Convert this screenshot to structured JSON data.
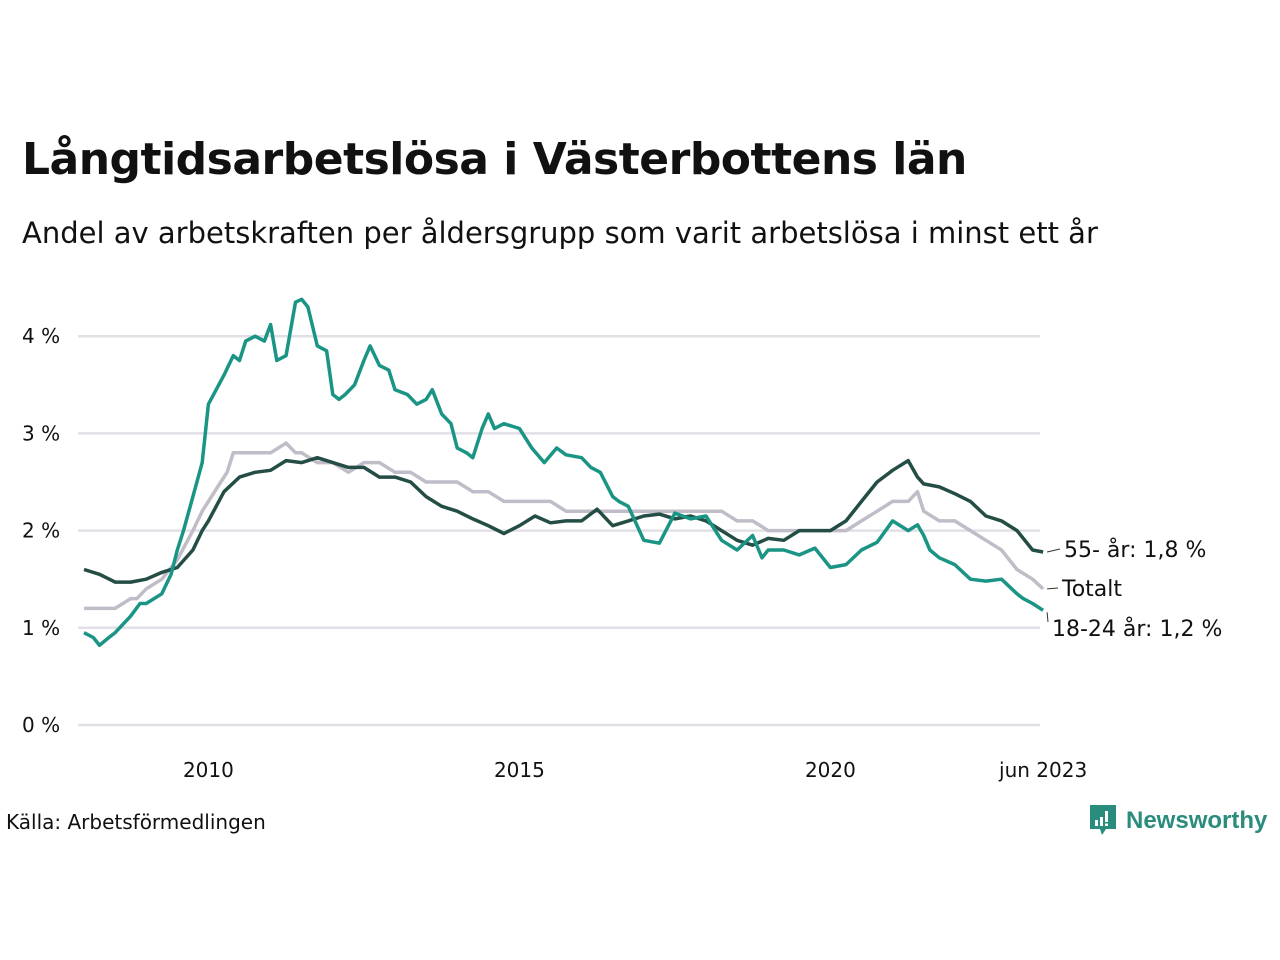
{
  "header": {
    "title": "Långtidsarbetslösa i Västerbottens län",
    "subtitle": "Andel av arbetskraften per åldersgrupp som varit arbetslösa i minst ett år"
  },
  "footer": {
    "source": "Källa: Arbetsförmedlingen",
    "brand": "Newsworthy"
  },
  "colors": {
    "youth": "#1a9484",
    "senior": "#234d45",
    "total": "#c0bcc8",
    "grid": "#e2e0e6",
    "brand": "#2a8c7c"
  },
  "chart_data": {
    "type": "line",
    "title": "Långtidsarbetslösa i Västerbottens län",
    "subtitle": "Andel av arbetskraften per åldersgrupp som varit arbetslösa i minst ett år",
    "xlabel": "",
    "ylabel": "",
    "xlim": [
      2008.0,
      2023.5
    ],
    "ylim": [
      0,
      4.5
    ],
    "grid": true,
    "y_ticks": [
      {
        "value": 0,
        "label": "0 %"
      },
      {
        "value": 1,
        "label": "1 %"
      },
      {
        "value": 2,
        "label": "2 %"
      },
      {
        "value": 3,
        "label": "3 %"
      },
      {
        "value": 4,
        "label": "4 %"
      }
    ],
    "x_ticks": [
      {
        "value": 2010.0,
        "label": "2010"
      },
      {
        "value": 2015.0,
        "label": "2015"
      },
      {
        "value": 2020.0,
        "label": "2020"
      },
      {
        "value": 2023.42,
        "label": "jun 2023"
      }
    ],
    "series": [
      {
        "name": "Totalt",
        "key": "total",
        "end_label": "Totalt",
        "x": [
          2008.0,
          2008.5,
          2008.75,
          2008.85,
          2009.0,
          2009.25,
          2009.5,
          2009.75,
          2009.9,
          2010.0,
          2010.2,
          2010.3,
          2010.4,
          2010.5,
          2010.75,
          2011.0,
          2011.25,
          2011.4,
          2011.5,
          2011.75,
          2012.0,
          2012.25,
          2012.5,
          2012.75,
          2013.0,
          2013.25,
          2013.5,
          2013.75,
          2014.0,
          2014.25,
          2014.5,
          2014.75,
          2015.0,
          2015.25,
          2015.5,
          2015.75,
          2016.0,
          2016.25,
          2016.5,
          2016.75,
          2017.0,
          2017.25,
          2017.5,
          2017.75,
          2018.0,
          2018.25,
          2018.5,
          2018.75,
          2019.0,
          2019.25,
          2019.5,
          2019.75,
          2020.0,
          2020.25,
          2020.5,
          2020.75,
          2021.0,
          2021.25,
          2021.4,
          2021.5,
          2021.75,
          2022.0,
          2022.25,
          2022.5,
          2022.75,
          2023.0,
          2023.25,
          2023.42
        ],
        "values": [
          1.2,
          1.2,
          1.3,
          1.3,
          1.4,
          1.5,
          1.7,
          2.0,
          2.2,
          2.3,
          2.5,
          2.6,
          2.8,
          2.8,
          2.8,
          2.8,
          2.9,
          2.8,
          2.8,
          2.7,
          2.7,
          2.6,
          2.7,
          2.7,
          2.6,
          2.6,
          2.5,
          2.5,
          2.5,
          2.4,
          2.4,
          2.3,
          2.3,
          2.3,
          2.3,
          2.2,
          2.2,
          2.2,
          2.2,
          2.2,
          2.2,
          2.2,
          2.2,
          2.2,
          2.2,
          2.2,
          2.1,
          2.1,
          2.0,
          2.0,
          2.0,
          2.0,
          2.0,
          2.0,
          2.1,
          2.2,
          2.3,
          2.3,
          2.4,
          2.2,
          2.1,
          2.1,
          2.0,
          1.9,
          1.8,
          1.6,
          1.5,
          1.4
        ]
      },
      {
        "name": "55- år",
        "key": "senior",
        "end_label": "55- år: 1,8 %",
        "x": [
          2008.0,
          2008.25,
          2008.5,
          2008.75,
          2009.0,
          2009.25,
          2009.5,
          2009.75,
          2009.9,
          2010.0,
          2010.25,
          2010.5,
          2010.75,
          2011.0,
          2011.25,
          2011.5,
          2011.75,
          2012.0,
          2012.25,
          2012.5,
          2012.75,
          2013.0,
          2013.25,
          2013.5,
          2013.75,
          2014.0,
          2014.25,
          2014.5,
          2014.75,
          2015.0,
          2015.25,
          2015.5,
          2015.75,
          2016.0,
          2016.25,
          2016.5,
          2016.75,
          2017.0,
          2017.25,
          2017.5,
          2017.75,
          2018.0,
          2018.25,
          2018.5,
          2018.75,
          2019.0,
          2019.25,
          2019.5,
          2019.75,
          2020.0,
          2020.25,
          2020.5,
          2020.75,
          2021.0,
          2021.25,
          2021.4,
          2021.5,
          2021.75,
          2022.0,
          2022.25,
          2022.5,
          2022.75,
          2023.0,
          2023.25,
          2023.42
        ],
        "values": [
          1.6,
          1.55,
          1.47,
          1.47,
          1.5,
          1.57,
          1.62,
          1.8,
          2.0,
          2.1,
          2.4,
          2.55,
          2.6,
          2.62,
          2.72,
          2.7,
          2.75,
          2.7,
          2.65,
          2.65,
          2.55,
          2.55,
          2.5,
          2.35,
          2.25,
          2.2,
          2.12,
          2.05,
          1.97,
          2.05,
          2.15,
          2.08,
          2.1,
          2.1,
          2.22,
          2.05,
          2.1,
          2.15,
          2.17,
          2.12,
          2.15,
          2.1,
          2.0,
          1.9,
          1.85,
          1.92,
          1.9,
          2.0,
          2.0,
          2.0,
          2.1,
          2.3,
          2.5,
          2.62,
          2.72,
          2.55,
          2.48,
          2.45,
          2.38,
          2.3,
          2.15,
          2.1,
          2.0,
          1.8,
          1.78
        ]
      },
      {
        "name": "18-24 år",
        "key": "youth",
        "end_label": "18-24 år: 1,2 %",
        "x": [
          2008.0,
          2008.15,
          2008.25,
          2008.4,
          2008.5,
          2008.75,
          2008.9,
          2009.0,
          2009.25,
          2009.4,
          2009.5,
          2009.6,
          2009.75,
          2009.9,
          2010.0,
          2010.25,
          2010.4,
          2010.5,
          2010.6,
          2010.75,
          2010.9,
          2011.0,
          2011.1,
          2011.25,
          2011.4,
          2011.5,
          2011.6,
          2011.75,
          2011.9,
          2012.0,
          2012.1,
          2012.2,
          2012.35,
          2012.5,
          2012.6,
          2012.75,
          2012.9,
          2013.0,
          2013.2,
          2013.35,
          2013.5,
          2013.6,
          2013.75,
          2013.9,
          2014.0,
          2014.15,
          2014.25,
          2014.4,
          2014.5,
          2014.6,
          2014.75,
          2015.0,
          2015.2,
          2015.4,
          2015.6,
          2015.75,
          2016.0,
          2016.15,
          2016.3,
          2016.5,
          2016.6,
          2016.75,
          2017.0,
          2017.25,
          2017.5,
          2017.75,
          2018.0,
          2018.25,
          2018.5,
          2018.75,
          2018.9,
          2019.0,
          2019.25,
          2019.5,
          2019.75,
          2020.0,
          2020.25,
          2020.5,
          2020.75,
          2021.0,
          2021.25,
          2021.4,
          2021.5,
          2021.6,
          2021.75,
          2022.0,
          2022.25,
          2022.5,
          2022.75,
          2023.0,
          2023.1,
          2023.25,
          2023.42
        ],
        "values": [
          0.95,
          0.9,
          0.82,
          0.9,
          0.95,
          1.12,
          1.25,
          1.25,
          1.35,
          1.55,
          1.8,
          2.0,
          2.35,
          2.7,
          3.3,
          3.6,
          3.8,
          3.75,
          3.95,
          4.0,
          3.95,
          4.12,
          3.75,
          3.8,
          4.35,
          4.38,
          4.3,
          3.9,
          3.85,
          3.4,
          3.35,
          3.4,
          3.5,
          3.75,
          3.9,
          3.7,
          3.65,
          3.45,
          3.4,
          3.3,
          3.35,
          3.45,
          3.2,
          3.1,
          2.85,
          2.8,
          2.75,
          3.05,
          3.2,
          3.05,
          3.1,
          3.05,
          2.85,
          2.7,
          2.85,
          2.78,
          2.75,
          2.65,
          2.6,
          2.35,
          2.3,
          2.25,
          1.9,
          1.87,
          2.18,
          2.12,
          2.15,
          1.9,
          1.8,
          1.95,
          1.72,
          1.8,
          1.8,
          1.75,
          1.82,
          1.62,
          1.65,
          1.8,
          1.88,
          2.1,
          2.0,
          2.06,
          1.95,
          1.8,
          1.72,
          1.65,
          1.5,
          1.48,
          1.5,
          1.35,
          1.3,
          1.25,
          1.18
        ]
      }
    ]
  }
}
